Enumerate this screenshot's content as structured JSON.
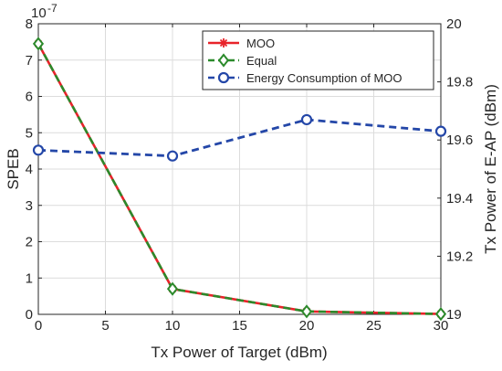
{
  "chart_data": {
    "type": "line",
    "title": "",
    "xlabel": "Tx Power of Target (dBm)",
    "ylabel_left": "SPEB",
    "ylabel_right": "Tx Power of E-AP (dBm)",
    "left_axis_exponent_base": "10",
    "left_axis_exponent_power": "-7",
    "xlim": [
      0,
      30
    ],
    "ylim_left": [
      0,
      8
    ],
    "ylim_right": [
      19,
      20
    ],
    "x_ticks": [
      "0",
      "5",
      "10",
      "15",
      "20",
      "25",
      "30"
    ],
    "y_left_ticks": [
      "0",
      "1",
      "2",
      "3",
      "4",
      "5",
      "6",
      "7",
      "8"
    ],
    "y_right_ticks": [
      "19",
      "19.2",
      "19.4",
      "19.6",
      "19.8",
      "20"
    ],
    "grid": true,
    "legend_position": "top-right",
    "series": [
      {
        "name": "MOO",
        "axis": "left",
        "color": "#e8232a",
        "line_style": "solid",
        "marker": "asterisk",
        "x": [
          0,
          10,
          20,
          30
        ],
        "y": [
          7.45e-07,
          7e-08,
          8e-09,
          1e-09
        ]
      },
      {
        "name": "Equal",
        "axis": "left",
        "color": "#2b8a2b",
        "line_style": "dashed",
        "marker": "diamond",
        "x": [
          0,
          10,
          20,
          30
        ],
        "y": [
          7.45e-07,
          7e-08,
          8e-09,
          1e-09
        ]
      },
      {
        "name": "Energy Consumption of MOO",
        "axis": "right",
        "color": "#2447a8",
        "line_style": "dashed",
        "marker": "circle",
        "x": [
          0,
          10,
          20,
          30
        ],
        "y": [
          19.565,
          19.545,
          19.67,
          19.63
        ]
      }
    ]
  }
}
